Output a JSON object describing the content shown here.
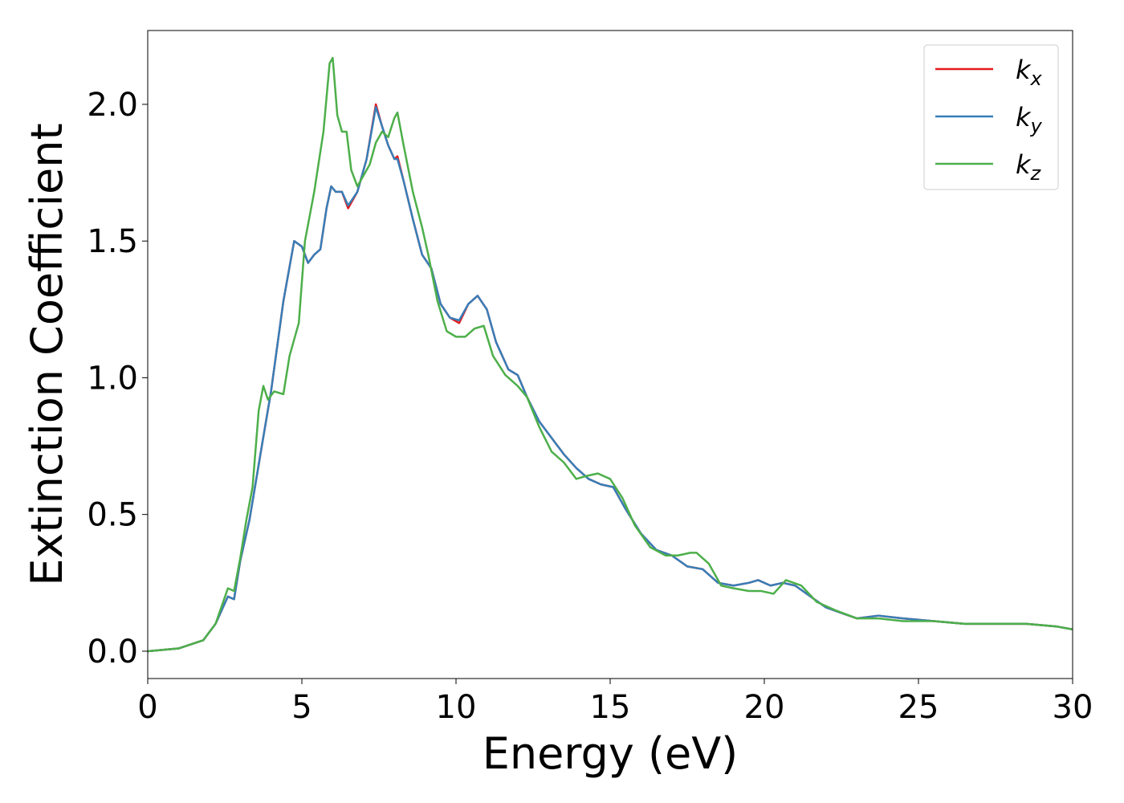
{
  "chart_data": {
    "type": "line",
    "xlabel": "Energy (eV)",
    "ylabel": "Extinction Coefficient",
    "xlim": [
      0,
      30
    ],
    "ylim": [
      -0.1,
      2.27
    ],
    "xticks": [
      "0",
      "5",
      "10",
      "15",
      "20",
      "25",
      "30"
    ],
    "yticks": [
      "0.0",
      "0.5",
      "1.0",
      "1.5",
      "2.0"
    ],
    "grid": false,
    "legend_position": "top-right",
    "series": [
      {
        "name": "k_x",
        "label_main": "k",
        "label_sub": "x",
        "color": "#e41a1c",
        "x": [
          0,
          1,
          1.8,
          2.2,
          2.6,
          2.8,
          3.0,
          3.3,
          3.7,
          4.0,
          4.4,
          4.75,
          5.0,
          5.2,
          5.4,
          5.6,
          5.8,
          5.95,
          6.1,
          6.3,
          6.5,
          6.8,
          7.1,
          7.4,
          7.6,
          7.8,
          8.0,
          8.1,
          8.3,
          8.6,
          8.9,
          9.2,
          9.5,
          9.8,
          10.1,
          10.4,
          10.7,
          11.0,
          11.3,
          11.7,
          12.0,
          12.3,
          12.7,
          13.1,
          13.5,
          13.9,
          14.3,
          14.7,
          15.1,
          15.5,
          16.0,
          16.5,
          17.0,
          17.5,
          18.0,
          18.5,
          19.0,
          19.5,
          19.8,
          20.2,
          20.6,
          21.0,
          21.5,
          22.0,
          22.5,
          23.0,
          23.7,
          24.5,
          25.5,
          26.5,
          27.5,
          28.5,
          29.5,
          30
        ],
        "values": [
          0.0,
          0.01,
          0.04,
          0.1,
          0.2,
          0.19,
          0.33,
          0.48,
          0.75,
          0.95,
          1.28,
          1.5,
          1.48,
          1.42,
          1.45,
          1.47,
          1.62,
          1.7,
          1.68,
          1.68,
          1.62,
          1.68,
          1.8,
          2.0,
          1.92,
          1.85,
          1.8,
          1.81,
          1.72,
          1.58,
          1.45,
          1.4,
          1.27,
          1.22,
          1.2,
          1.27,
          1.3,
          1.25,
          1.13,
          1.03,
          1.01,
          0.93,
          0.84,
          0.78,
          0.72,
          0.67,
          0.63,
          0.61,
          0.6,
          0.52,
          0.43,
          0.37,
          0.35,
          0.31,
          0.3,
          0.25,
          0.24,
          0.25,
          0.26,
          0.24,
          0.25,
          0.24,
          0.2,
          0.16,
          0.14,
          0.12,
          0.13,
          0.12,
          0.11,
          0.1,
          0.1,
          0.1,
          0.09,
          0.08
        ]
      },
      {
        "name": "k_y",
        "label_main": "k",
        "label_sub": "y",
        "color": "#377eb8",
        "x": [
          0,
          1,
          1.8,
          2.2,
          2.6,
          2.8,
          3.0,
          3.3,
          3.7,
          4.0,
          4.4,
          4.75,
          5.0,
          5.2,
          5.4,
          5.6,
          5.8,
          5.95,
          6.1,
          6.3,
          6.5,
          6.8,
          7.1,
          7.4,
          7.6,
          7.8,
          8.0,
          8.1,
          8.3,
          8.6,
          8.9,
          9.2,
          9.5,
          9.8,
          10.1,
          10.4,
          10.7,
          11.0,
          11.3,
          11.7,
          12.0,
          12.3,
          12.7,
          13.1,
          13.5,
          13.9,
          14.3,
          14.7,
          15.1,
          15.5,
          16.0,
          16.5,
          17.0,
          17.5,
          18.0,
          18.5,
          19.0,
          19.5,
          19.8,
          20.2,
          20.6,
          21.0,
          21.5,
          22.0,
          22.5,
          23.0,
          23.7,
          24.5,
          25.5,
          26.5,
          27.5,
          28.5,
          29.5,
          30
        ],
        "values": [
          0.0,
          0.01,
          0.04,
          0.1,
          0.2,
          0.19,
          0.33,
          0.48,
          0.75,
          0.95,
          1.28,
          1.5,
          1.48,
          1.42,
          1.45,
          1.47,
          1.62,
          1.7,
          1.68,
          1.68,
          1.63,
          1.68,
          1.8,
          1.99,
          1.92,
          1.85,
          1.8,
          1.8,
          1.72,
          1.58,
          1.45,
          1.4,
          1.27,
          1.22,
          1.21,
          1.27,
          1.3,
          1.25,
          1.13,
          1.03,
          1.01,
          0.93,
          0.84,
          0.78,
          0.72,
          0.67,
          0.63,
          0.61,
          0.6,
          0.52,
          0.43,
          0.37,
          0.35,
          0.31,
          0.3,
          0.25,
          0.24,
          0.25,
          0.26,
          0.24,
          0.25,
          0.24,
          0.2,
          0.16,
          0.14,
          0.12,
          0.13,
          0.12,
          0.11,
          0.1,
          0.1,
          0.1,
          0.09,
          0.08
        ]
      },
      {
        "name": "k_z",
        "label_main": "k",
        "label_sub": "z",
        "color": "#4daf4a",
        "x": [
          0,
          1,
          1.8,
          2.2,
          2.6,
          2.8,
          3.0,
          3.2,
          3.4,
          3.6,
          3.75,
          3.9,
          4.1,
          4.4,
          4.6,
          4.9,
          5.1,
          5.4,
          5.7,
          5.9,
          6.0,
          6.15,
          6.3,
          6.45,
          6.6,
          6.8,
          7.0,
          7.2,
          7.4,
          7.6,
          7.8,
          8.0,
          8.1,
          8.3,
          8.6,
          8.9,
          9.1,
          9.4,
          9.7,
          10.0,
          10.3,
          10.6,
          10.9,
          11.2,
          11.6,
          12.0,
          12.3,
          12.7,
          13.1,
          13.5,
          13.9,
          14.2,
          14.6,
          15.0,
          15.4,
          15.8,
          16.3,
          16.8,
          17.2,
          17.6,
          17.8,
          18.2,
          18.6,
          19.0,
          19.5,
          19.9,
          20.3,
          20.7,
          21.2,
          21.7,
          22.3,
          23.0,
          23.7,
          24.5,
          25.5,
          26.5,
          27.5,
          28.5,
          29.5,
          30
        ],
        "values": [
          0.0,
          0.01,
          0.04,
          0.1,
          0.23,
          0.22,
          0.34,
          0.48,
          0.6,
          0.88,
          0.97,
          0.92,
          0.95,
          0.94,
          1.08,
          1.2,
          1.5,
          1.68,
          1.9,
          2.15,
          2.17,
          1.96,
          1.9,
          1.9,
          1.76,
          1.7,
          1.74,
          1.78,
          1.86,
          1.9,
          1.88,
          1.95,
          1.97,
          1.85,
          1.68,
          1.55,
          1.45,
          1.28,
          1.17,
          1.15,
          1.15,
          1.18,
          1.19,
          1.08,
          1.01,
          0.97,
          0.93,
          0.82,
          0.73,
          0.69,
          0.63,
          0.64,
          0.65,
          0.63,
          0.56,
          0.46,
          0.38,
          0.35,
          0.35,
          0.36,
          0.36,
          0.32,
          0.24,
          0.23,
          0.22,
          0.22,
          0.21,
          0.26,
          0.24,
          0.18,
          0.15,
          0.12,
          0.12,
          0.11,
          0.11,
          0.1,
          0.1,
          0.1,
          0.09,
          0.08
        ]
      }
    ]
  }
}
